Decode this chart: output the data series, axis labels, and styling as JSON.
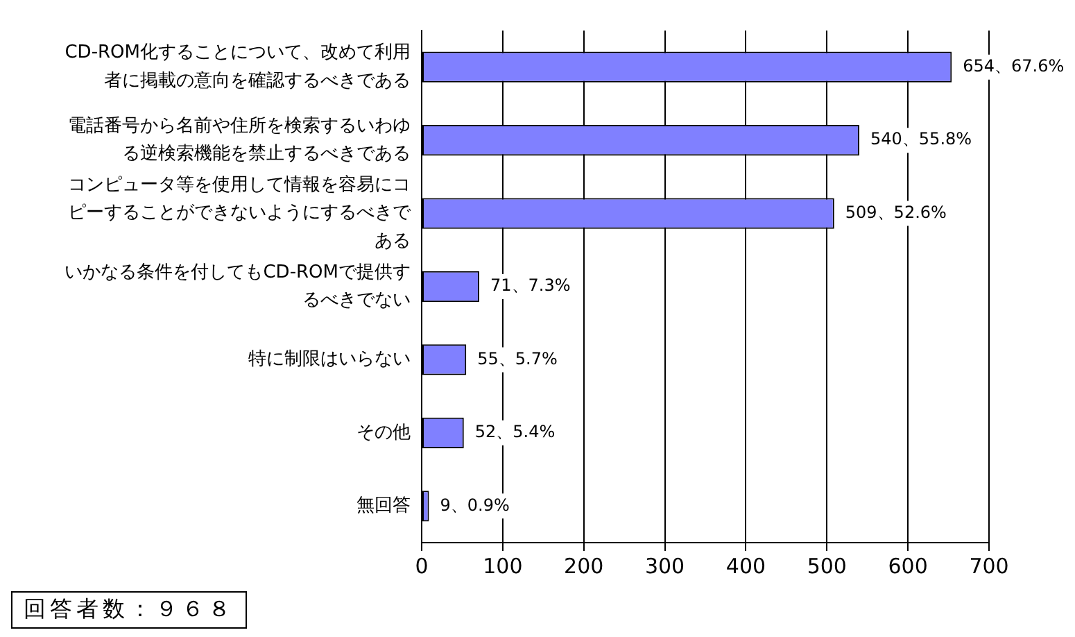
{
  "chart_data": {
    "type": "bar",
    "orientation": "horizontal",
    "categories": [
      "CD-ROM化することについて、改めて利用者に掲載の意向を確認するべきである",
      "電話番号から名前や住所を検索するいわゆる逆検索機能を禁止するべきである",
      "コンピュータ等を使用して情報を容易にコピーすることができないようにするべきである",
      "いかなる条件を付してもCD-ROMで提供するべきでない",
      "特に制限はいらない",
      "その他",
      "無回答"
    ],
    "values": [
      654,
      540,
      509,
      71,
      55,
      52,
      9
    ],
    "color": "#8080ff",
    "value_labels": [
      "654、67.6%",
      "540、55.8%",
      "509、52.6%",
      "71、7.3%",
      "55、5.7%",
      "52、5.4%",
      "9、0.9%"
    ],
    "xlim": [
      0,
      700
    ],
    "xticks": [
      0,
      100,
      200,
      300,
      400,
      500,
      600,
      700
    ],
    "grid": "x",
    "annotations": [
      "回答者数：９６８"
    ]
  }
}
